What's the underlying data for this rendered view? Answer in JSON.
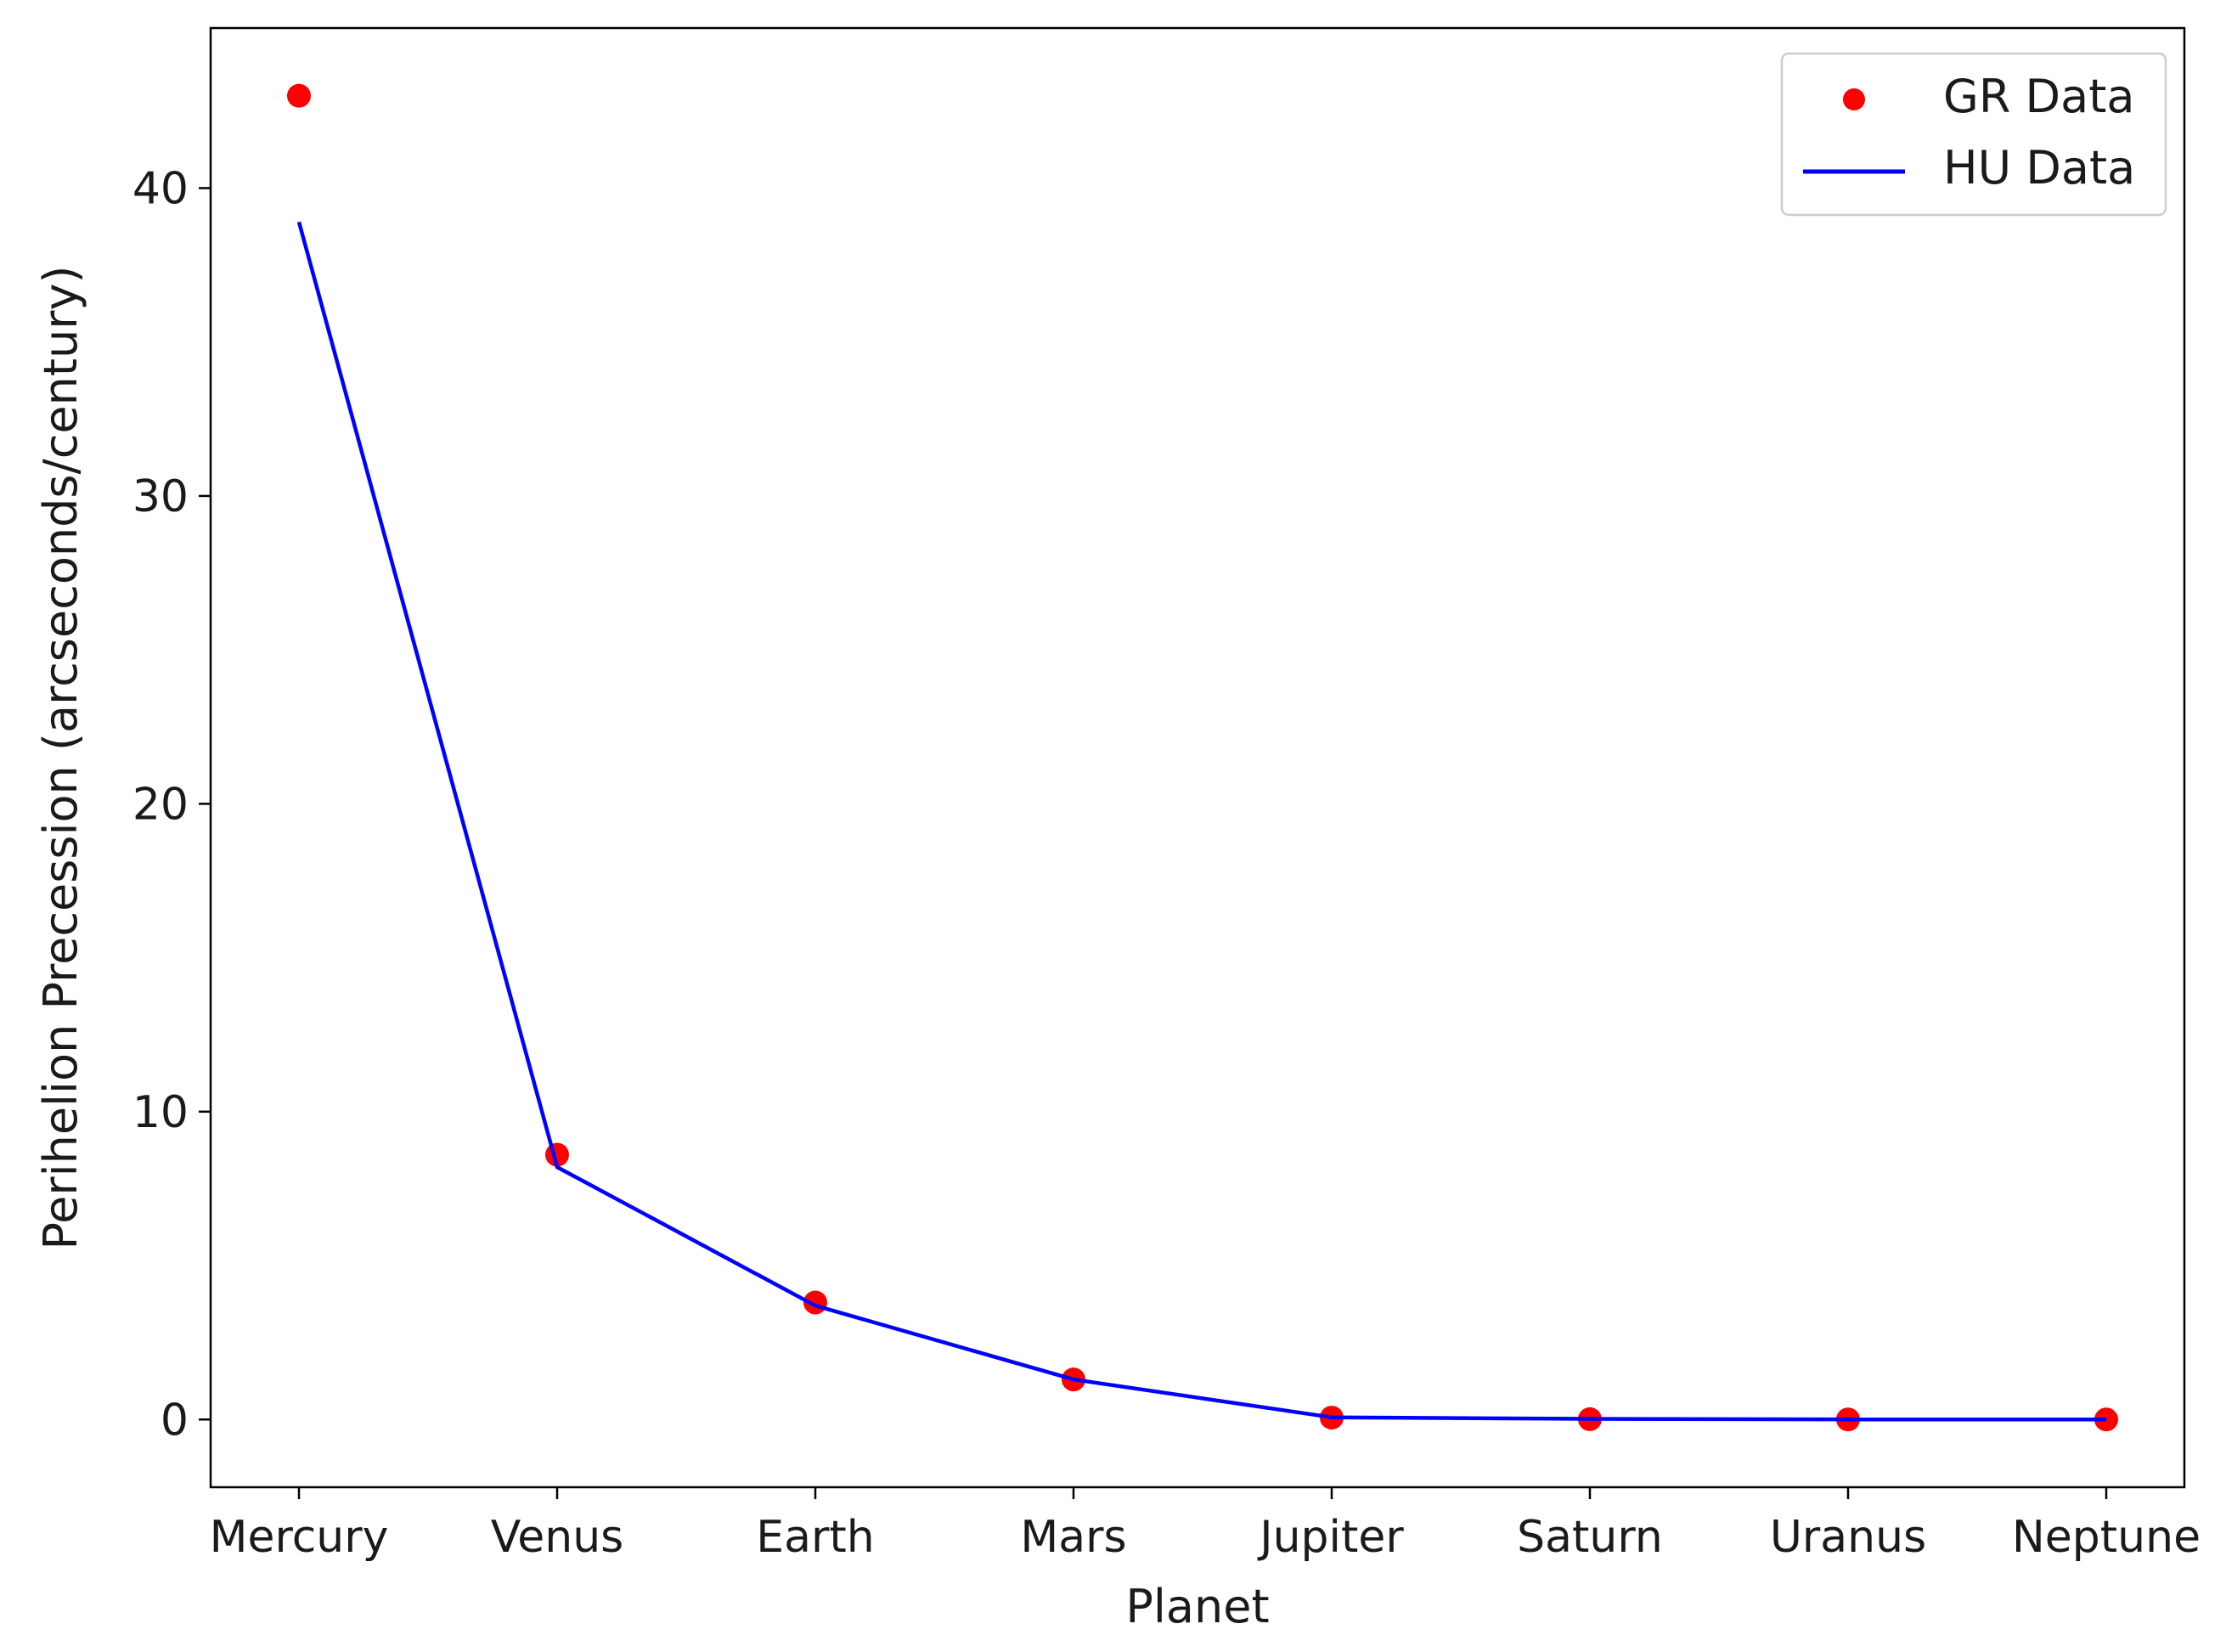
{
  "chart_data": {
    "type": "line",
    "categories": [
      "Mercury",
      "Venus",
      "Earth",
      "Mars",
      "Jupiter",
      "Saturn",
      "Uranus",
      "Neptune"
    ],
    "series": [
      {
        "name": "GR Data",
        "kind": "scatter",
        "color": "#ff0000",
        "values": [
          43.0,
          8.6,
          3.8,
          1.3,
          0.06,
          0.01,
          0.002,
          0.001
        ]
      },
      {
        "name": "HU Data",
        "kind": "line",
        "color": "#0000ff",
        "values": [
          38.9,
          8.2,
          3.7,
          1.3,
          0.07,
          0.02,
          0.003,
          0.001
        ]
      }
    ],
    "xlabel": "Planet",
    "ylabel": "Perihelion Precession (arcseconds/century)",
    "ylim": [
      -2.2,
      45.2
    ],
    "yticks": [
      0,
      10,
      20,
      30,
      40
    ],
    "grid": false,
    "legend": "top-right"
  }
}
